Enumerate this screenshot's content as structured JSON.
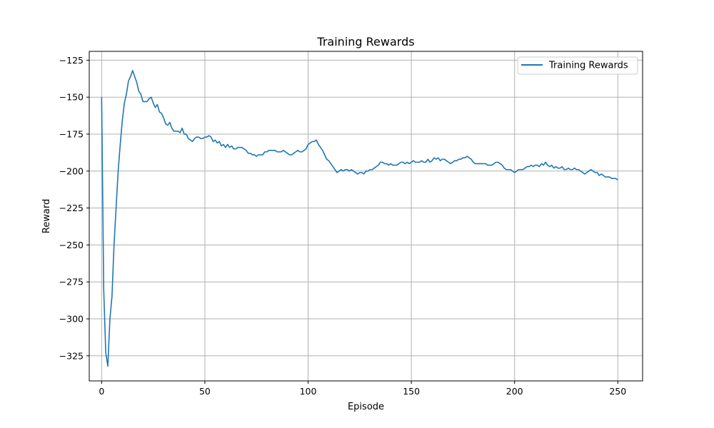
{
  "chart_data": {
    "type": "line",
    "title": "Training Rewards",
    "xlabel": "Episode",
    "ylabel": "Reward",
    "xlim": [
      -6,
      262
    ],
    "ylim": [
      -342,
      -119
    ],
    "xticks": [
      0,
      50,
      100,
      150,
      200,
      250
    ],
    "yticks": [
      -325,
      -300,
      -275,
      -250,
      -225,
      -200,
      -175,
      -150,
      -125
    ],
    "grid": true,
    "legend": "top-right",
    "series": [
      {
        "name": "Training Rewards",
        "color": "#1f77b4",
        "points": [
          [
            0,
            -150
          ],
          [
            1,
            -280
          ],
          [
            2,
            -323
          ],
          [
            3,
            -332
          ],
          [
            4,
            -300
          ],
          [
            5,
            -285
          ],
          [
            6,
            -250
          ],
          [
            7,
            -225
          ],
          [
            8,
            -200
          ],
          [
            9,
            -182
          ],
          [
            10,
            -166
          ],
          [
            11,
            -154
          ],
          [
            12,
            -148
          ],
          [
            13,
            -139
          ],
          [
            14,
            -136
          ],
          [
            15,
            -132
          ],
          [
            16,
            -136
          ],
          [
            17,
            -140
          ],
          [
            18,
            -146
          ],
          [
            19,
            -148
          ],
          [
            20,
            -153
          ],
          [
            21,
            -153
          ],
          [
            22,
            -153
          ],
          [
            23,
            -151
          ],
          [
            24,
            -150
          ],
          [
            25,
            -154
          ],
          [
            26,
            -157
          ],
          [
            27,
            -155
          ],
          [
            28,
            -160
          ],
          [
            29,
            -161
          ],
          [
            30,
            -164
          ],
          [
            31,
            -168
          ],
          [
            32,
            -169
          ],
          [
            33,
            -167
          ],
          [
            34,
            -171
          ],
          [
            35,
            -173
          ],
          [
            36,
            -173
          ],
          [
            37,
            -173
          ],
          [
            38,
            -174
          ],
          [
            39,
            -171
          ],
          [
            40,
            -175
          ],
          [
            41,
            -175
          ],
          [
            42,
            -178
          ],
          [
            43,
            -179
          ],
          [
            44,
            -180
          ],
          [
            45,
            -178
          ],
          [
            46,
            -177
          ],
          [
            47,
            -177
          ],
          [
            48,
            -178
          ],
          [
            49,
            -178
          ],
          [
            50,
            -177
          ],
          [
            51,
            -177
          ],
          [
            52,
            -176
          ],
          [
            53,
            -177
          ],
          [
            54,
            -180
          ],
          [
            55,
            -179
          ],
          [
            56,
            -181
          ],
          [
            57,
            -180
          ],
          [
            58,
            -183
          ],
          [
            59,
            -182
          ],
          [
            60,
            -184
          ],
          [
            61,
            -182
          ],
          [
            62,
            -184
          ],
          [
            63,
            -183
          ],
          [
            64,
            -185
          ],
          [
            65,
            -185
          ],
          [
            66,
            -184
          ],
          [
            67,
            -184
          ],
          [
            68,
            -184
          ],
          [
            69,
            -185
          ],
          [
            70,
            -186
          ],
          [
            71,
            -188
          ],
          [
            72,
            -188
          ],
          [
            73,
            -189
          ],
          [
            74,
            -189
          ],
          [
            75,
            -190
          ],
          [
            76,
            -189
          ],
          [
            77,
            -189
          ],
          [
            78,
            -189
          ],
          [
            79,
            -187
          ],
          [
            80,
            -187
          ],
          [
            81,
            -186
          ],
          [
            82,
            -186
          ],
          [
            83,
            -186
          ],
          [
            84,
            -186
          ],
          [
            85,
            -187
          ],
          [
            86,
            -187
          ],
          [
            87,
            -187
          ],
          [
            88,
            -186
          ],
          [
            89,
            -187
          ],
          [
            90,
            -188
          ],
          [
            91,
            -189
          ],
          [
            92,
            -189
          ],
          [
            93,
            -188
          ],
          [
            94,
            -187
          ],
          [
            95,
            -186
          ],
          [
            96,
            -187
          ],
          [
            97,
            -187
          ],
          [
            98,
            -186
          ],
          [
            99,
            -185
          ],
          [
            100,
            -182
          ],
          [
            101,
            -181
          ],
          [
            102,
            -180
          ],
          [
            103,
            -180
          ],
          [
            104,
            -179
          ],
          [
            105,
            -182
          ],
          [
            106,
            -184
          ],
          [
            107,
            -186
          ],
          [
            108,
            -189
          ],
          [
            109,
            -192
          ],
          [
            110,
            -193
          ],
          [
            111,
            -195
          ],
          [
            112,
            -197
          ],
          [
            113,
            -199
          ],
          [
            114,
            -201
          ],
          [
            115,
            -200
          ],
          [
            116,
            -199
          ],
          [
            117,
            -200
          ],
          [
            118,
            -199
          ],
          [
            119,
            -199
          ],
          [
            120,
            -200
          ],
          [
            121,
            -199
          ],
          [
            122,
            -200
          ],
          [
            123,
            -201
          ],
          [
            124,
            -202
          ],
          [
            125,
            -201
          ],
          [
            126,
            -201
          ],
          [
            127,
            -202
          ],
          [
            128,
            -200
          ],
          [
            129,
            -200
          ],
          [
            130,
            -199
          ],
          [
            131,
            -199
          ],
          [
            132,
            -198
          ],
          [
            133,
            -197
          ],
          [
            134,
            -196
          ],
          [
            135,
            -194
          ],
          [
            136,
            -194
          ],
          [
            137,
            -195
          ],
          [
            138,
            -195
          ],
          [
            139,
            -196
          ],
          [
            140,
            -195
          ],
          [
            141,
            -196
          ],
          [
            142,
            -196
          ],
          [
            143,
            -196
          ],
          [
            144,
            -195
          ],
          [
            145,
            -194
          ],
          [
            146,
            -194
          ],
          [
            147,
            -195
          ],
          [
            148,
            -194
          ],
          [
            149,
            -195
          ],
          [
            150,
            -194
          ],
          [
            151,
            -193
          ],
          [
            152,
            -194
          ],
          [
            153,
            -194
          ],
          [
            154,
            -194
          ],
          [
            155,
            -193
          ],
          [
            156,
            -194
          ],
          [
            157,
            -194
          ],
          [
            158,
            -192
          ],
          [
            159,
            -194
          ],
          [
            160,
            -193
          ],
          [
            161,
            -191
          ],
          [
            162,
            -192
          ],
          [
            163,
            -191
          ],
          [
            164,
            -193
          ],
          [
            165,
            -192
          ],
          [
            166,
            -192
          ],
          [
            167,
            -193
          ],
          [
            168,
            -194
          ],
          [
            169,
            -195
          ],
          [
            170,
            -194
          ],
          [
            171,
            -193
          ],
          [
            172,
            -193
          ],
          [
            173,
            -192
          ],
          [
            174,
            -192
          ],
          [
            175,
            -191
          ],
          [
            176,
            -191
          ],
          [
            177,
            -190
          ],
          [
            178,
            -191
          ],
          [
            179,
            -192
          ],
          [
            180,
            -194
          ],
          [
            181,
            -195
          ],
          [
            182,
            -195
          ],
          [
            183,
            -195
          ],
          [
            184,
            -195
          ],
          [
            185,
            -195
          ],
          [
            186,
            -195
          ],
          [
            187,
            -196
          ],
          [
            188,
            -196
          ],
          [
            189,
            -196
          ],
          [
            190,
            -195
          ],
          [
            191,
            -194
          ],
          [
            192,
            -194
          ],
          [
            193,
            -195
          ],
          [
            194,
            -196
          ],
          [
            195,
            -198
          ],
          [
            196,
            -199
          ],
          [
            197,
            -199
          ],
          [
            198,
            -199
          ],
          [
            199,
            -200
          ],
          [
            200,
            -201
          ],
          [
            201,
            -200
          ],
          [
            202,
            -199
          ],
          [
            203,
            -199
          ],
          [
            204,
            -199
          ],
          [
            205,
            -198
          ],
          [
            206,
            -197
          ],
          [
            207,
            -197
          ],
          [
            208,
            -196
          ],
          [
            209,
            -197
          ],
          [
            210,
            -196
          ],
          [
            211,
            -196
          ],
          [
            212,
            -197
          ],
          [
            213,
            -195
          ],
          [
            214,
            -196
          ],
          [
            215,
            -194
          ],
          [
            216,
            -196
          ],
          [
            217,
            -197
          ],
          [
            218,
            -196
          ],
          [
            219,
            -198
          ],
          [
            220,
            -197
          ],
          [
            221,
            -198
          ],
          [
            222,
            -198
          ],
          [
            223,
            -197
          ],
          [
            224,
            -199
          ],
          [
            225,
            -199
          ],
          [
            226,
            -198
          ],
          [
            227,
            -199
          ],
          [
            228,
            -199
          ],
          [
            229,
            -198
          ],
          [
            230,
            -199
          ],
          [
            231,
            -199
          ],
          [
            232,
            -200
          ],
          [
            233,
            -201
          ],
          [
            234,
            -202
          ],
          [
            235,
            -201
          ],
          [
            236,
            -200
          ],
          [
            237,
            -199
          ],
          [
            238,
            -200
          ],
          [
            239,
            -201
          ],
          [
            240,
            -201
          ],
          [
            241,
            -203
          ],
          [
            242,
            -202
          ],
          [
            243,
            -203
          ],
          [
            244,
            -204
          ],
          [
            245,
            -204
          ],
          [
            246,
            -204
          ],
          [
            247,
            -205
          ],
          [
            248,
            -205
          ],
          [
            249,
            -205
          ],
          [
            250,
            -206
          ]
        ]
      }
    ]
  }
}
